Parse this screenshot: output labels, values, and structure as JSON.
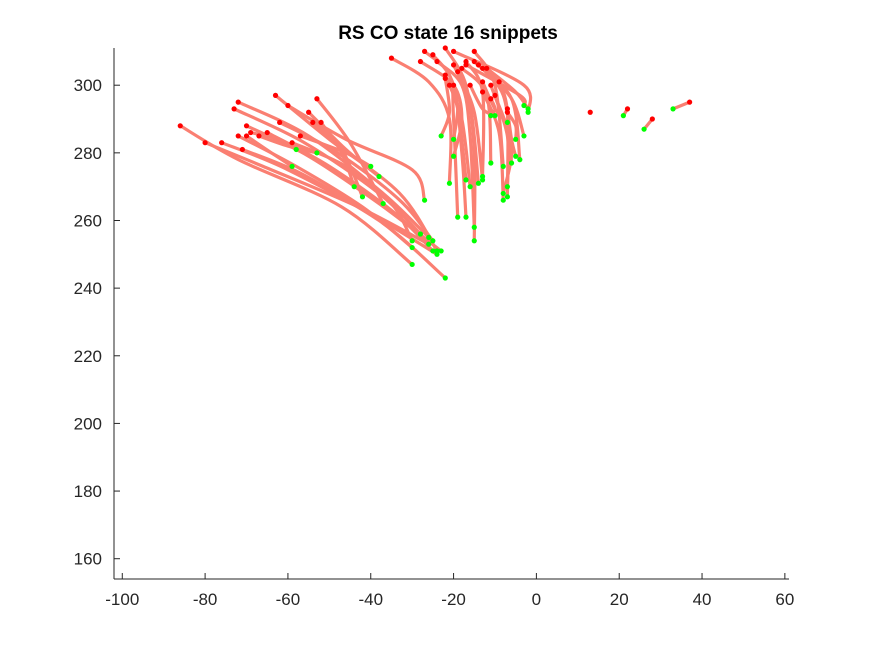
{
  "chart_data": {
    "type": "line",
    "title": "RS  CO state 16 snippets",
    "xlabel": "",
    "ylabel": "",
    "xlim": [
      -102,
      61
    ],
    "ylim": [
      154,
      311
    ],
    "xticks": [
      -100,
      -80,
      -60,
      -40,
      -20,
      0,
      20,
      40,
      60
    ],
    "yticks": [
      160,
      180,
      200,
      220,
      240,
      260,
      280,
      300
    ],
    "grid": false,
    "box": false,
    "colors": {
      "trajectory": "#fa7f72",
      "start": "#ff0000",
      "end": "#00ff00",
      "axis": "#262626"
    },
    "series": [
      {
        "x": [
          -86,
          -72,
          -47,
          -30
        ],
        "y": [
          288,
          278,
          264,
          247
        ]
      },
      {
        "x": [
          -80,
          -66,
          -43,
          -26
        ],
        "y": [
          283,
          276,
          264,
          253
        ]
      },
      {
        "x": [
          -76,
          -60,
          -38,
          -22
        ],
        "y": [
          283,
          275,
          260,
          243
        ]
      },
      {
        "x": [
          -73,
          -56,
          -38,
          -28
        ],
        "y": [
          293,
          283,
          268,
          256
        ]
      },
      {
        "x": [
          -72,
          -55,
          -37,
          -26
        ],
        "y": [
          295,
          285,
          268,
          255
        ]
      },
      {
        "x": [
          -72,
          -58,
          -42,
          -30
        ],
        "y": [
          285,
          276,
          264,
          252
        ]
      },
      {
        "x": [
          -71,
          -57,
          -40,
          -24
        ],
        "y": [
          281,
          274,
          262,
          250
        ]
      },
      {
        "x": [
          -70,
          -55,
          -38,
          -23
        ],
        "y": [
          288,
          279,
          265,
          251
        ]
      },
      {
        "x": [
          -69,
          -62,
          -58
        ],
        "y": [
          286,
          284,
          281
        ]
      },
      {
        "x": [
          -67,
          -60,
          -53
        ],
        "y": [
          285,
          282,
          280
        ]
      },
      {
        "x": [
          -65,
          -50,
          -34,
          -25
        ],
        "y": [
          286,
          276,
          262,
          251
        ]
      },
      {
        "x": [
          -63,
          -50,
          -33,
          -24
        ],
        "y": [
          297,
          284,
          268,
          251
        ]
      },
      {
        "x": [
          -62,
          -48,
          -33,
          -25
        ],
        "y": [
          289,
          280,
          266,
          254
        ]
      },
      {
        "x": [
          -60,
          -46,
          -30,
          -27
        ],
        "y": [
          294,
          284,
          275,
          266
        ]
      },
      {
        "x": [
          -59,
          -46,
          -35,
          -30
        ],
        "y": [
          283,
          276,
          265,
          254
        ]
      },
      {
        "x": [
          -57,
          -46,
          -40
        ],
        "y": [
          285,
          280,
          276
        ]
      },
      {
        "x": [
          -55,
          -46,
          -38
        ],
        "y": [
          292,
          281,
          273
        ]
      },
      {
        "x": [
          -54,
          -47,
          -42
        ],
        "y": [
          289,
          281,
          267
        ]
      },
      {
        "x": [
          -53,
          -45,
          -37
        ],
        "y": [
          296,
          283,
          265
        ]
      },
      {
        "x": [
          -52,
          -47,
          -44
        ],
        "y": [
          289,
          280,
          270
        ]
      },
      {
        "x": [
          -70,
          -64,
          -59
        ],
        "y": [
          285,
          280,
          276
        ]
      },
      {
        "x": [
          -35,
          -26,
          -21,
          -21
        ],
        "y": [
          308,
          301,
          290,
          271
        ]
      },
      {
        "x": [
          -28,
          -20,
          -18,
          -20
        ],
        "y": [
          307,
          300,
          290,
          279
        ]
      },
      {
        "x": [
          -27,
          -21,
          -20,
          -19
        ],
        "y": [
          310,
          303,
          290,
          261
        ]
      },
      {
        "x": [
          -25,
          -20,
          -18,
          -17
        ],
        "y": [
          309,
          300,
          280,
          261
        ]
      },
      {
        "x": [
          -24,
          -18,
          -16,
          -15
        ],
        "y": [
          307,
          300,
          285,
          258
        ]
      },
      {
        "x": [
          -22,
          -17,
          -15,
          -15
        ],
        "y": [
          311,
          300,
          280,
          254
        ]
      },
      {
        "x": [
          -22,
          -19,
          -17
        ],
        "y": [
          303,
          293,
          272
        ]
      },
      {
        "x": [
          -21,
          -18,
          -16
        ],
        "y": [
          300,
          290,
          270
        ]
      },
      {
        "x": [
          -20,
          -16,
          -14
        ],
        "y": [
          306,
          294,
          271
        ]
      },
      {
        "x": [
          -19,
          -15,
          -13
        ],
        "y": [
          304,
          292,
          272
        ]
      },
      {
        "x": [
          -18,
          -12,
          -11
        ],
        "y": [
          305,
          297,
          277
        ]
      },
      {
        "x": [
          -17,
          -13,
          -13
        ],
        "y": [
          307,
          298,
          273
        ]
      },
      {
        "x": [
          -15,
          -10,
          -8
        ],
        "y": [
          310,
          300,
          276
        ]
      },
      {
        "x": [
          -15,
          -8,
          -6
        ],
        "y": [
          307,
          297,
          277
        ]
      },
      {
        "x": [
          -14,
          -6,
          -4
        ],
        "y": [
          306,
          296,
          278
        ]
      },
      {
        "x": [
          -13,
          -6,
          -3
        ],
        "y": [
          305,
          296,
          285
        ]
      },
      {
        "x": [
          -12,
          -5,
          -2
        ],
        "y": [
          305,
          298,
          293
        ]
      },
      {
        "x": [
          -20,
          -3,
          -2
        ],
        "y": [
          310,
          300,
          292
        ]
      },
      {
        "x": [
          -17,
          -4,
          -3
        ],
        "y": [
          306,
          297,
          294
        ]
      },
      {
        "x": [
          -10,
          -6,
          -8
        ],
        "y": [
          297,
          282,
          268
        ]
      },
      {
        "x": [
          -11,
          -7,
          -7
        ],
        "y": [
          300,
          285,
          270
        ]
      },
      {
        "x": [
          -9,
          -7,
          -7
        ],
        "y": [
          301,
          292,
          267
        ]
      },
      {
        "x": [
          -13,
          -9,
          -8
        ],
        "y": [
          298,
          286,
          266
        ]
      },
      {
        "x": [
          -7,
          -6,
          -5
        ],
        "y": [
          293,
          284,
          279
        ]
      },
      {
        "x": [
          -22,
          -21,
          -23
        ],
        "y": [
          302,
          292,
          285
        ]
      },
      {
        "x": [
          -20,
          -19,
          -20
        ],
        "y": [
          300,
          293,
          284
        ]
      },
      {
        "x": [
          -16,
          -13,
          -10
        ],
        "y": [
          300,
          293,
          291
        ]
      },
      {
        "x": [
          -13,
          -10,
          -7
        ],
        "y": [
          301,
          293,
          289
        ]
      },
      {
        "x": [
          -11,
          -10,
          -11
        ],
        "y": [
          296,
          293,
          291
        ]
      },
      {
        "x": [
          -7,
          -5,
          -5
        ],
        "y": [
          292,
          288,
          284
        ]
      },
      {
        "x": [
          22,
          21
        ],
        "y": [
          293,
          291
        ]
      },
      {
        "x": [
          28,
          26
        ],
        "y": [
          290,
          287
        ]
      },
      {
        "x": [
          37,
          33
        ],
        "y": [
          295,
          293
        ]
      },
      {
        "x": [
          13
        ],
        "y": [
          292
        ]
      }
    ]
  }
}
